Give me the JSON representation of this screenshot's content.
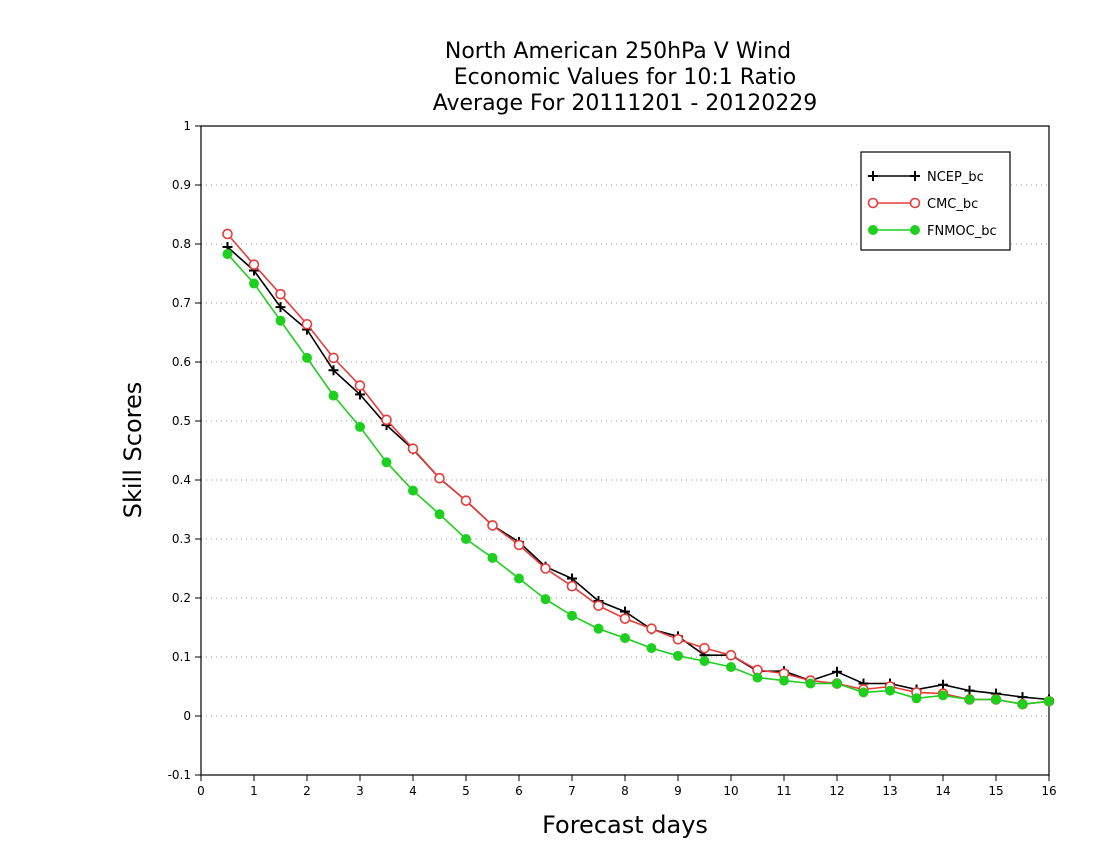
{
  "chart_data": {
    "type": "line",
    "title_lines": [
      "North American 250hPa V Wind",
      "Economic Values for 10:1 Ratio",
      "Average For 20111201 - 20120229"
    ],
    "xlabel": "Forecast days",
    "ylabel": "Skill Scores",
    "xlim": [
      0,
      16
    ],
    "ylim": [
      -0.1,
      1
    ],
    "xticks": [
      0,
      1,
      2,
      3,
      4,
      5,
      6,
      7,
      8,
      9,
      10,
      11,
      12,
      13,
      14,
      15,
      16
    ],
    "yticks": [
      -0.1,
      0,
      0.1,
      0.2,
      0.3,
      0.4,
      0.5,
      0.6,
      0.7,
      0.8,
      0.9,
      1
    ],
    "ytick_labels": [
      "-0.1",
      "0",
      "0.1",
      "0.2",
      "0.3",
      "0.4",
      "0.5",
      "0.6",
      "0.7",
      "0.8",
      "0.9",
      "1"
    ],
    "grid": "horizontal dotted",
    "legend_position": "top-right",
    "x": [
      0.5,
      1,
      1.5,
      2,
      2.5,
      3,
      3.5,
      4,
      4.5,
      5,
      5.5,
      6,
      6.5,
      7,
      7.5,
      8,
      8.5,
      9,
      9.5,
      10,
      10.5,
      11,
      11.5,
      12,
      12.5,
      13,
      13.5,
      14,
      14.5,
      15,
      15.5,
      16
    ],
    "series": [
      {
        "name": "NCEP_bc",
        "color": "#000000",
        "marker": "plus",
        "values": [
          0.795,
          0.755,
          0.693,
          0.655,
          0.586,
          0.545,
          0.493,
          0.452,
          0.403,
          0.365,
          0.323,
          0.295,
          0.253,
          0.233,
          0.195,
          0.177,
          0.147,
          0.135,
          0.103,
          0.103,
          0.076,
          0.076,
          0.06,
          0.075,
          0.055,
          0.055,
          0.045,
          0.053,
          0.043,
          0.038,
          0.032,
          0.028
        ]
      },
      {
        "name": "CMC_bc",
        "color": "#e83c3c",
        "marker": "open-circle",
        "values": [
          0.817,
          0.765,
          0.715,
          0.664,
          0.607,
          0.56,
          0.502,
          0.453,
          0.403,
          0.365,
          0.323,
          0.29,
          0.25,
          0.22,
          0.187,
          0.165,
          0.148,
          0.13,
          0.115,
          0.103,
          0.078,
          0.072,
          0.06,
          0.055,
          0.045,
          0.05,
          0.04,
          0.038,
          0.028,
          0.028,
          0.02,
          0.025
        ]
      },
      {
        "name": "FNMOC_bc",
        "color": "#1fcf1f",
        "marker": "filled-circle",
        "values": [
          0.783,
          0.733,
          0.67,
          0.607,
          0.543,
          0.49,
          0.43,
          0.382,
          0.342,
          0.3,
          0.268,
          0.233,
          0.198,
          0.17,
          0.148,
          0.132,
          0.115,
          0.102,
          0.093,
          0.083,
          0.065,
          0.06,
          0.055,
          0.055,
          0.04,
          0.043,
          0.03,
          0.035,
          0.028,
          0.028,
          0.02,
          0.025
        ]
      }
    ]
  }
}
